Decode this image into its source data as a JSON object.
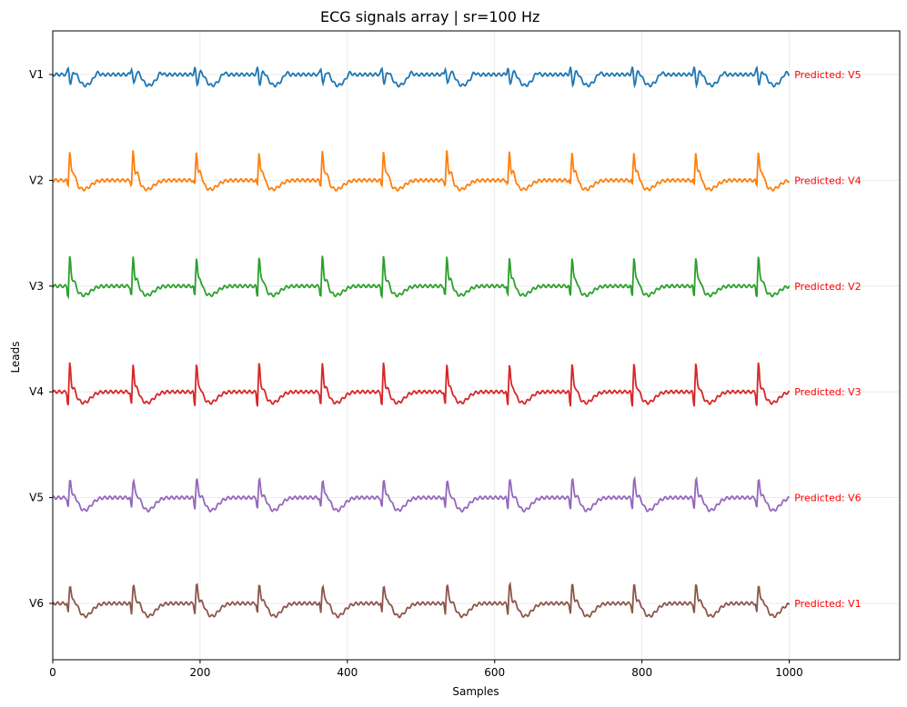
{
  "chart_data": {
    "type": "line",
    "title": "ECG signals array | sr=100 Hz",
    "xlabel": "Samples",
    "ylabel": "Leads",
    "xlim": [
      0,
      1150
    ],
    "xticks": [
      0,
      200,
      400,
      600,
      800,
      1000
    ],
    "grid": true,
    "beat_positions": [
      20,
      106,
      192,
      277,
      363,
      446,
      532,
      617,
      702,
      786,
      870,
      955
    ],
    "series": [
      {
        "name": "V1",
        "color": "#1f77b4",
        "annotation": "Predicted: V5",
        "annotation_color": "#ff0000"
      },
      {
        "name": "V2",
        "color": "#ff7f0e",
        "annotation": "Predicted: V4",
        "annotation_color": "#ff0000"
      },
      {
        "name": "V3",
        "color": "#2ca02c",
        "annotation": "Predicted: V2",
        "annotation_color": "#ff0000"
      },
      {
        "name": "V4",
        "color": "#d62728",
        "annotation": "Predicted: V3",
        "annotation_color": "#ff0000"
      },
      {
        "name": "V5",
        "color": "#9467bd",
        "annotation": "Predicted: V6",
        "annotation_color": "#ff0000"
      },
      {
        "name": "V6",
        "color": "#8c564b",
        "annotation": "Predicted: V1",
        "annotation_color": "#ff0000"
      }
    ]
  }
}
